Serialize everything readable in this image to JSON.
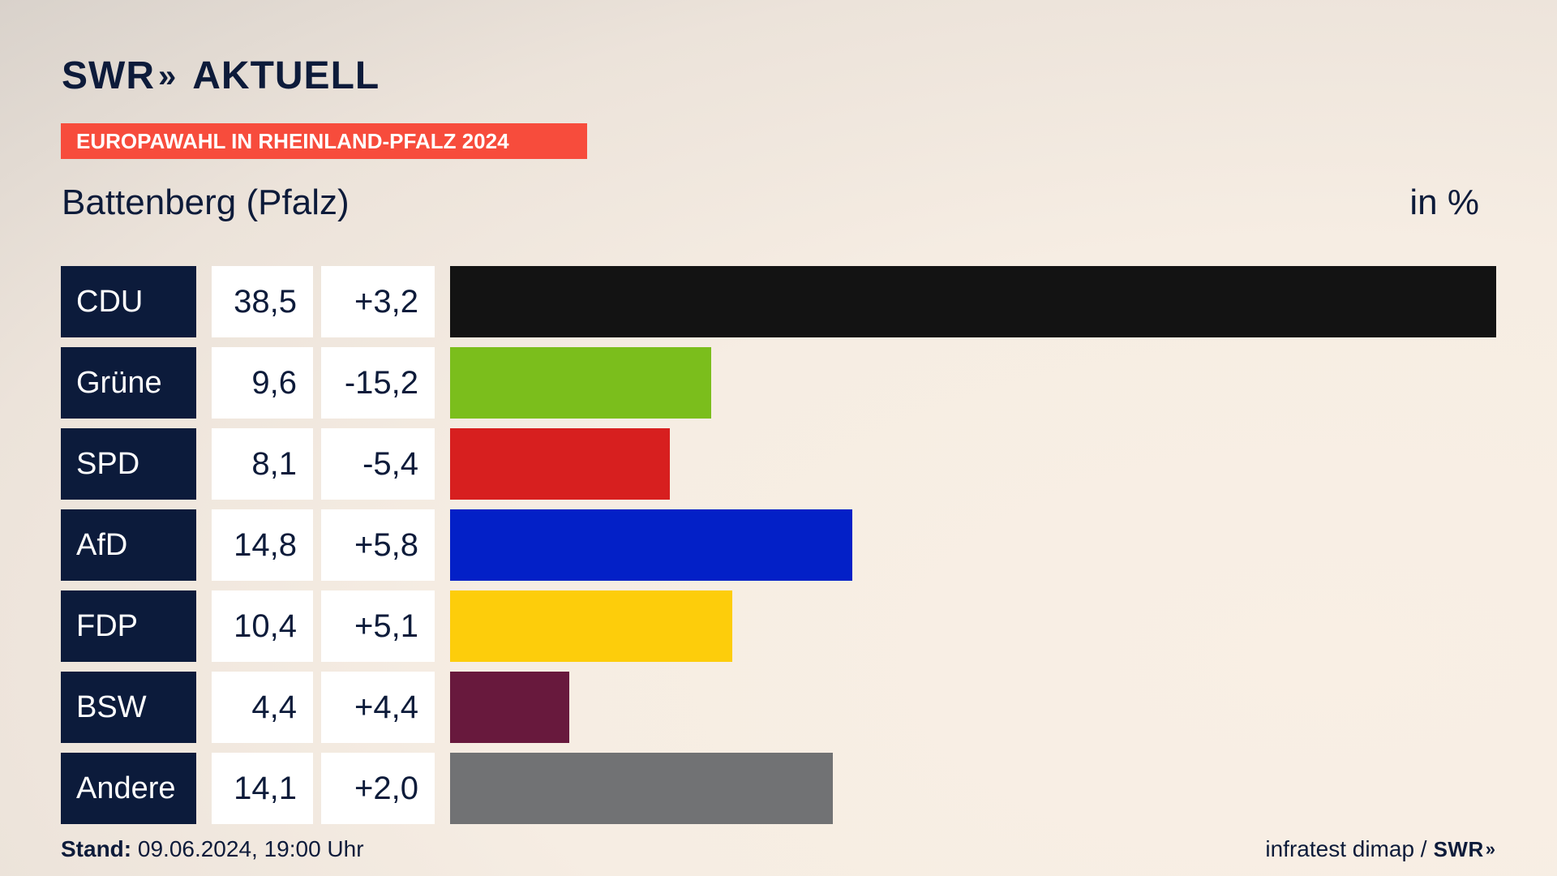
{
  "header": {
    "logo_swr": "SWR",
    "logo_chevrons": "»",
    "logo_aktuell": "AKTUELL",
    "banner": "EUROPAWAHL IN RHEINLAND-PFALZ 2024",
    "region": "Battenberg (Pfalz)",
    "unit": "in %"
  },
  "footer": {
    "stand_label": "Stand:",
    "stand_value": " 09.06.2024, 19:00 Uhr",
    "source": "infratest dimap /",
    "source_logo": "SWR",
    "source_chevrons": "»"
  },
  "colors": {
    "banner": "#f74c3c",
    "party_box": "#0c1b3b"
  },
  "chart_data": {
    "type": "bar",
    "title": "Battenberg (Pfalz)",
    "unit": "in %",
    "xlim": [
      0,
      38.5
    ],
    "rows": [
      {
        "party": "CDU",
        "value": 38.5,
        "value_label": "38,5",
        "diff_label": "+3,2",
        "color": "#131313"
      },
      {
        "party": "Grüne",
        "value": 9.6,
        "value_label": "9,6",
        "diff_label": "-15,2",
        "color": "#7bbe1c"
      },
      {
        "party": "SPD",
        "value": 8.1,
        "value_label": "8,1",
        "diff_label": "-5,4",
        "color": "#d71f1f"
      },
      {
        "party": "AfD",
        "value": 14.8,
        "value_label": "14,8",
        "diff_label": "+5,8",
        "color": "#0320c7"
      },
      {
        "party": "FDP",
        "value": 10.4,
        "value_label": "10,4",
        "diff_label": "+5,1",
        "color": "#fdcd0b"
      },
      {
        "party": "BSW",
        "value": 4.4,
        "value_label": "4,4",
        "diff_label": "+4,4",
        "color": "#68193d"
      },
      {
        "party": "Andere",
        "value": 14.1,
        "value_label": "14,1",
        "diff_label": "+2,0",
        "color": "#717274"
      }
    ]
  }
}
